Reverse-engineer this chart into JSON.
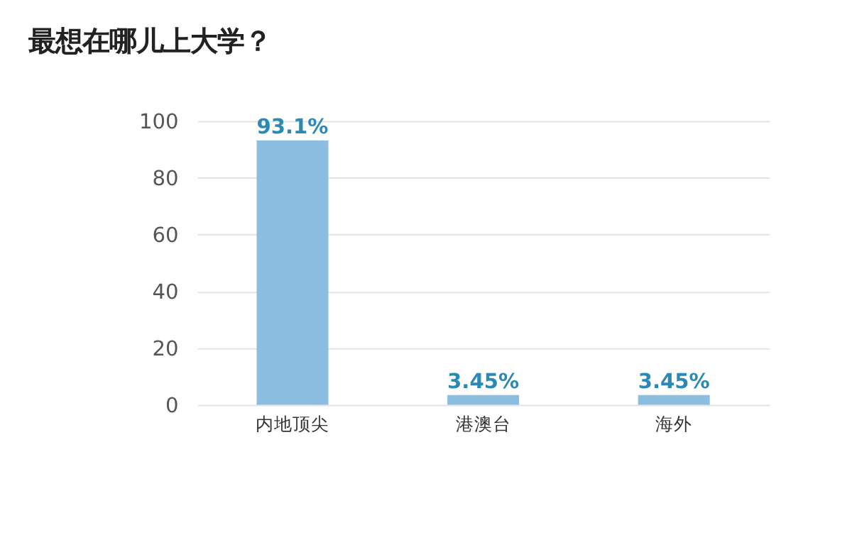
{
  "chart_data": {
    "type": "bar",
    "title": "最想在哪儿上大学？",
    "categories": [
      "内地顶尖",
      "港澳台",
      "海外"
    ],
    "values": [
      93.1,
      3.45,
      3.45
    ],
    "value_labels": [
      "93.1%",
      "3.45%",
      "3.45%"
    ],
    "color": "#8abde0",
    "ylim": [
      0,
      100
    ],
    "yticks": [
      0,
      20,
      40,
      60,
      80,
      100
    ],
    "grid": "y"
  }
}
